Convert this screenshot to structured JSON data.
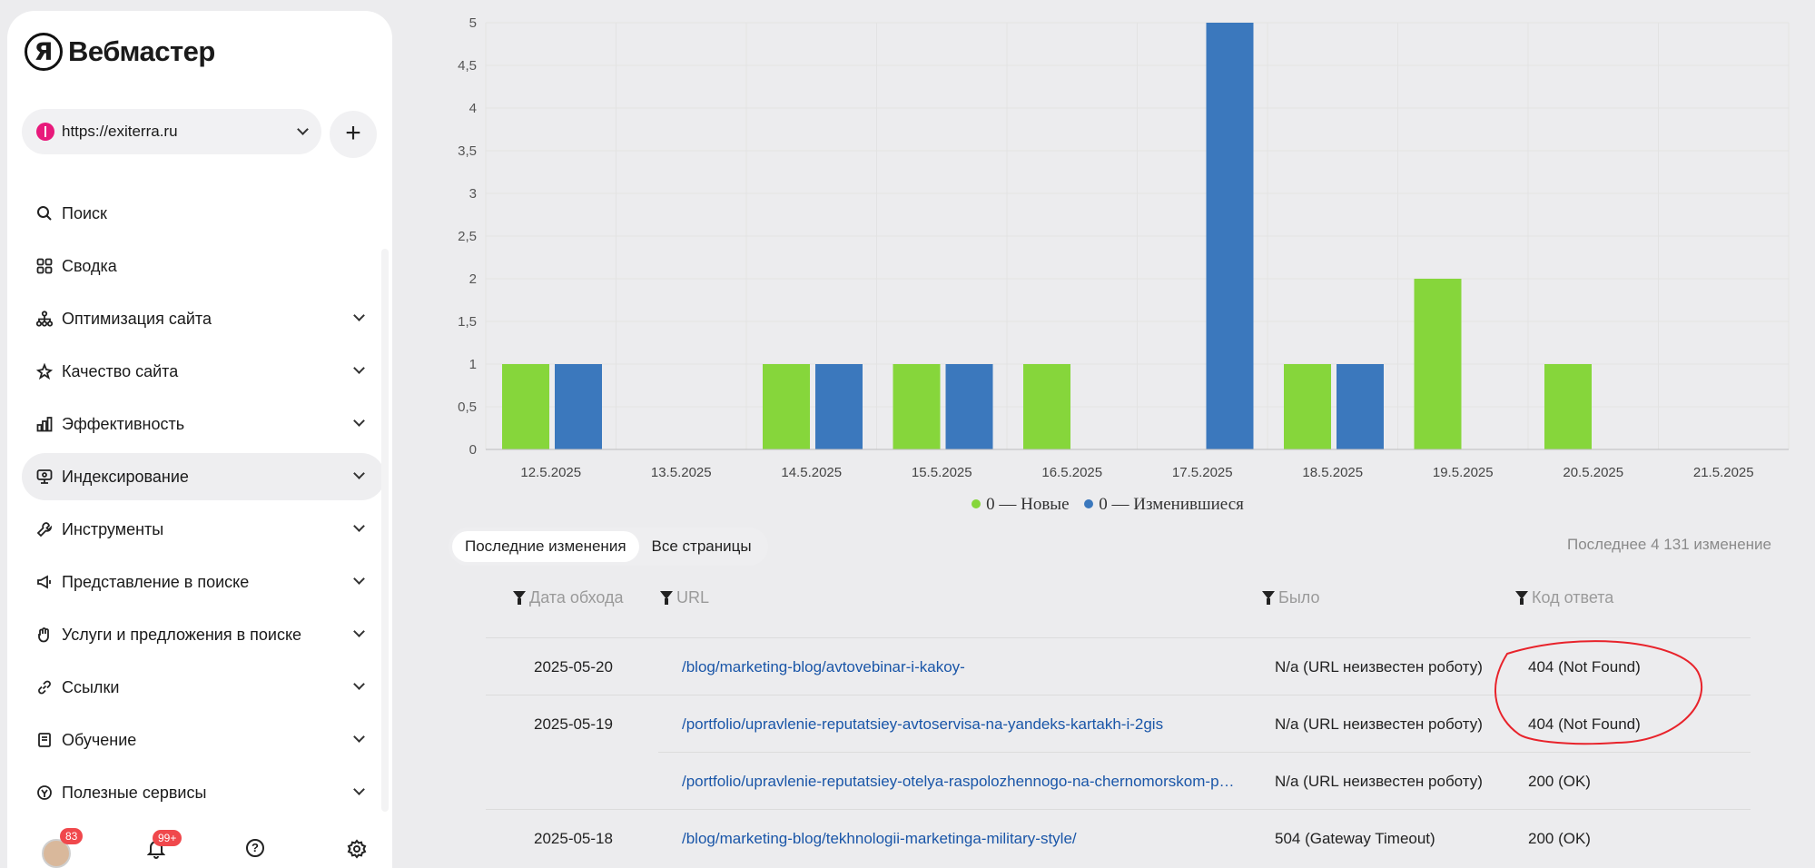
{
  "sidebar": {
    "logo_letter": "Я",
    "logo_text": "Вебмастер",
    "site_url": "https://exiterra.ru",
    "add_label": "+",
    "nav": [
      {
        "label": "Поиск",
        "icon": "search-icon",
        "chevron": false
      },
      {
        "label": "Сводка",
        "icon": "dashboard-icon",
        "chevron": false
      },
      {
        "label": "Оптимизация сайта",
        "icon": "sitemap-icon",
        "chevron": true
      },
      {
        "label": "Качество сайта",
        "icon": "sparkle-icon",
        "chevron": true
      },
      {
        "label": "Эффективность",
        "icon": "bar-chart-icon",
        "chevron": true
      },
      {
        "label": "Индексирование",
        "icon": "index-icon",
        "chevron": true,
        "active": true
      },
      {
        "label": "Инструменты",
        "icon": "wrench-icon",
        "chevron": true
      },
      {
        "label": "Представление в поиске",
        "icon": "megaphone-icon",
        "chevron": true
      },
      {
        "label": "Услуги и предложения в поиске",
        "icon": "hand-icon",
        "chevron": true
      },
      {
        "label": "Ссылки",
        "icon": "link-icon",
        "chevron": true
      },
      {
        "label": "Обучение",
        "icon": "book-icon",
        "chevron": true
      },
      {
        "label": "Полезные сервисы",
        "icon": "services-icon",
        "chevron": true
      }
    ],
    "bottom": {
      "avatar_badge": "83",
      "bell_badge": "99+"
    }
  },
  "chart_data": {
    "type": "bar",
    "categories": [
      "12.5.2025",
      "13.5.2025",
      "14.5.2025",
      "15.5.2025",
      "16.5.2025",
      "17.5.2025",
      "18.5.2025",
      "19.5.2025",
      "20.5.2025",
      "21.5.2025"
    ],
    "series": [
      {
        "name": "0 — Новые",
        "color": "#86d63b",
        "values": [
          1,
          0,
          1,
          1,
          1,
          0,
          1,
          2,
          1,
          0
        ]
      },
      {
        "name": "0 — Изменившиеся",
        "color": "#3b78bd",
        "values": [
          1,
          0,
          1,
          1,
          0,
          5,
          1,
          0,
          0,
          0
        ]
      }
    ],
    "yticks": [
      "0",
      "0,5",
      "1",
      "1,5",
      "2",
      "2,5",
      "3",
      "3,5",
      "4",
      "4,5",
      "5"
    ],
    "ylim": [
      0,
      5
    ],
    "grid": true,
    "legend_position": "bottom"
  },
  "tabs": [
    {
      "label": "Последние изменения",
      "active": true
    },
    {
      "label": "Все страницы",
      "active": false
    }
  ],
  "changes_count": "Последнее 4 131 изменение",
  "table": {
    "headers": {
      "date": "Дата обхода",
      "url": "URL",
      "was": "Было",
      "code": "Код ответа"
    },
    "rows": [
      {
        "date": "2025-05-20",
        "url": "/blog/marketing-blog/avtovebinar-i-kakoy-",
        "was": "N/a (URL неизвестен роботу)",
        "code": "404 (Not Found)"
      },
      {
        "date": "2025-05-19",
        "url": "/portfolio/upravlenie-reputatsiey-avtoservisa-na-yandeks-kartakh-i-2gis",
        "was": "N/a (URL неизвестен роботу)",
        "code": "404 (Not Found)"
      },
      {
        "date": "",
        "url": "/portfolio/upravlenie-reputatsiey-otelya-raspolozhennogo-na-chernomorskom-poberezhe",
        "was": "N/a (URL неизвестен роботу)",
        "code": "200 (OK)"
      },
      {
        "date": "2025-05-18",
        "url": "/blog/marketing-blog/tekhnologii-marketinga-military-style/",
        "was": "504 (Gateway Timeout)",
        "code": "200 (OK)"
      }
    ]
  }
}
